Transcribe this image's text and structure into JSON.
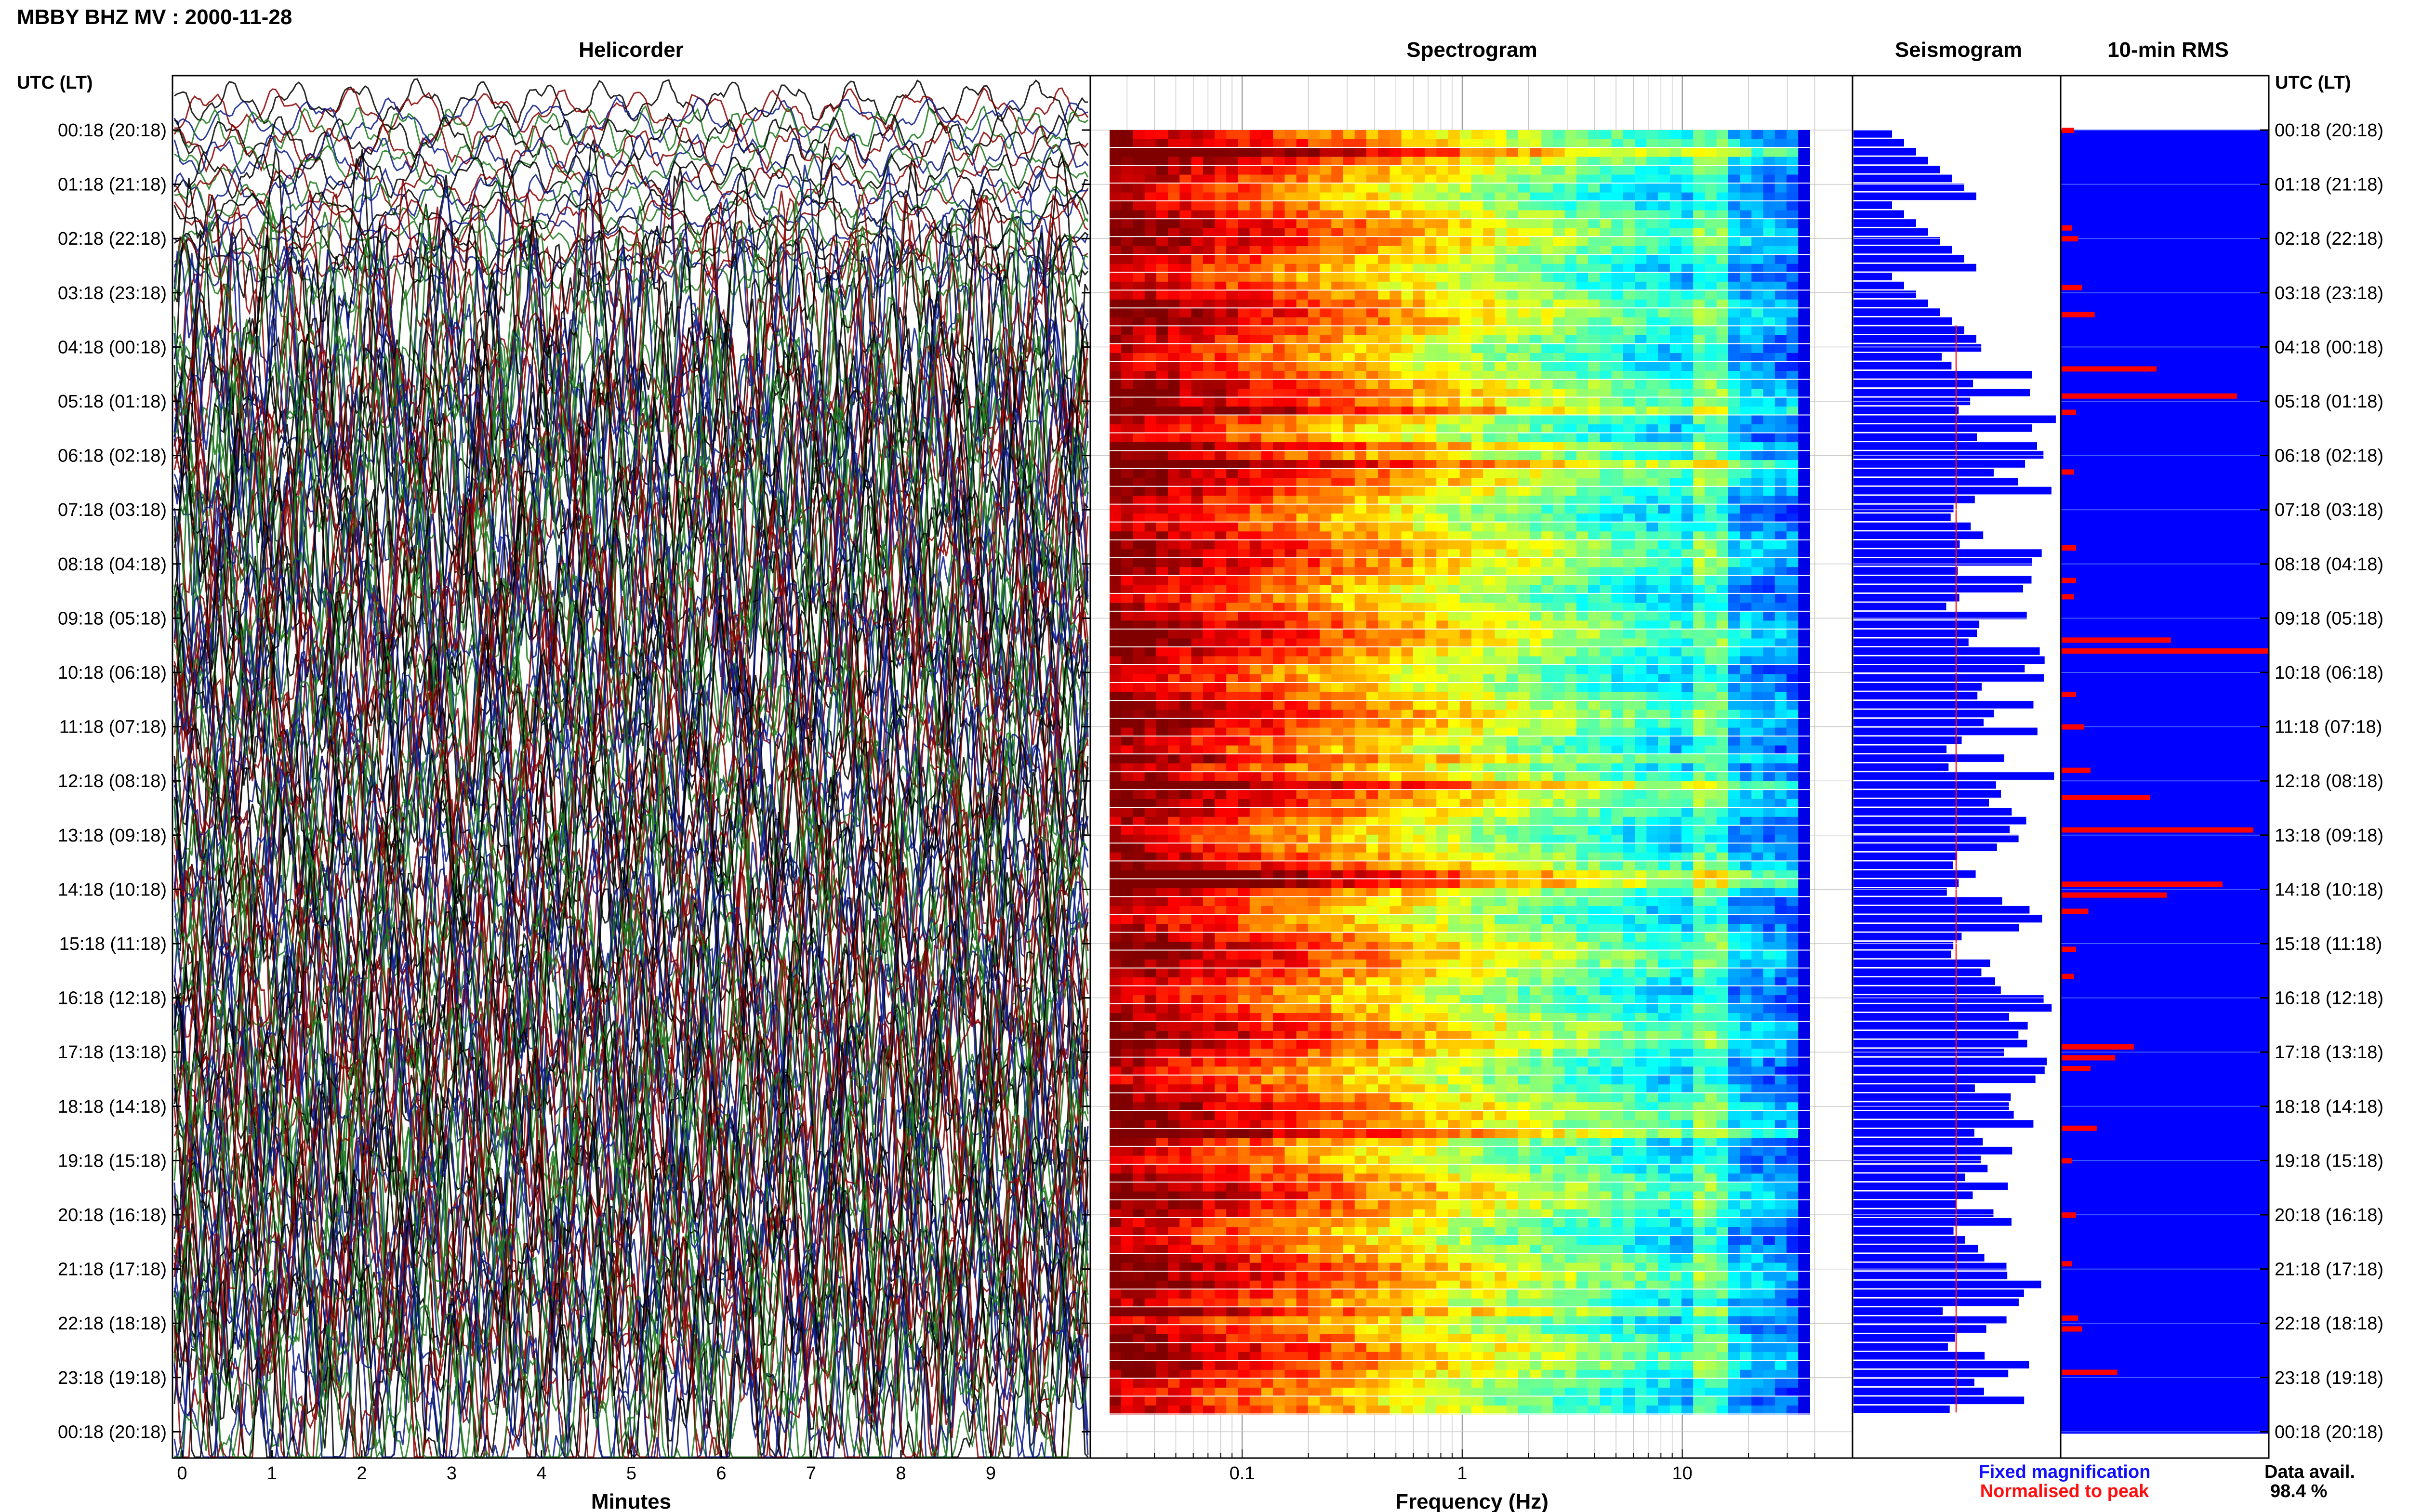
{
  "header": {
    "title": "MBBY BHZ MV : 2000-11-28"
  },
  "panels": {
    "helicorder": "Helicorder",
    "spectrogram": "Spectrogram",
    "seismogram": "Seismogram",
    "rms": "10-min RMS"
  },
  "axes": {
    "left_header": "UTC (LT)",
    "right_header": "UTC (LT)",
    "minutes_label": "Minutes",
    "freq_label": "Frequency (Hz)"
  },
  "legend": {
    "fixed": "Fixed magnification",
    "normalised": "Normalised to peak",
    "fixed_color": "#1010ff",
    "normalised_color": "#ff1010"
  },
  "availability": {
    "label": "Data avail.",
    "value": "98.4 %"
  },
  "colors": {
    "heli_traces": [
      "#000000",
      "#8b0000",
      "#0a1a8c",
      "#1a7a1a"
    ],
    "seismo_fill": "#0000ff",
    "rms_bg": "#0000ff",
    "rms_bar": "#ff0000",
    "grid": "#b0b0b0"
  },
  "chart_data": {
    "type": "heatmap",
    "title": "MBBY BHZ MV : 2000-11-28",
    "row_labels": [
      "00:18 (20:18)",
      "01:18 (21:18)",
      "02:18 (22:18)",
      "03:18 (23:18)",
      "04:18 (00:18)",
      "05:18 (01:18)",
      "06:18 (02:18)",
      "07:18 (03:18)",
      "08:18 (04:18)",
      "09:18 (05:18)",
      "10:18 (06:18)",
      "11:18 (07:18)",
      "12:18 (08:18)",
      "13:18 (09:18)",
      "14:18 (10:18)",
      "15:18 (11:18)",
      "16:18 (12:18)",
      "17:18 (13:18)",
      "18:18 (14:18)",
      "19:18 (15:18)",
      "20:18 (16:18)",
      "21:18 (17:18)",
      "22:18 (18:18)",
      "23:18 (19:18)",
      "00:18 (20:18)"
    ],
    "minutes_ticks": [
      "0",
      "1",
      "2",
      "3",
      "4",
      "5",
      "6",
      "7",
      "8",
      "9"
    ],
    "freq_ticks": [
      {
        "value": 0.1,
        "label": "0.1"
      },
      {
        "value": 1,
        "label": "1"
      },
      {
        "value": 10,
        "label": "10"
      }
    ],
    "freq_range": [
      0.025,
      45
    ],
    "minutes_range": [
      0,
      10
    ],
    "rms_events": [
      {
        "row": 0.0,
        "value": 0.06
      },
      {
        "row": 1.8,
        "value": 0.05
      },
      {
        "row": 2.0,
        "value": 0.08
      },
      {
        "row": 2.9,
        "value": 0.1
      },
      {
        "row": 3.4,
        "value": 0.16
      },
      {
        "row": 4.4,
        "value": 0.46
      },
      {
        "row": 4.9,
        "value": 0.85
      },
      {
        "row": 5.2,
        "value": 0.07
      },
      {
        "row": 6.3,
        "value": 0.06
      },
      {
        "row": 7.7,
        "value": 0.07
      },
      {
        "row": 8.3,
        "value": 0.07
      },
      {
        "row": 8.6,
        "value": 0.06
      },
      {
        "row": 9.4,
        "value": 0.53
      },
      {
        "row": 9.6,
        "value": 1.0
      },
      {
        "row": 10.4,
        "value": 0.07
      },
      {
        "row": 11.0,
        "value": 0.11
      },
      {
        "row": 11.8,
        "value": 0.14
      },
      {
        "row": 12.3,
        "value": 0.43
      },
      {
        "row": 12.9,
        "value": 0.93
      },
      {
        "row": 13.9,
        "value": 0.78
      },
      {
        "row": 14.1,
        "value": 0.51
      },
      {
        "row": 14.4,
        "value": 0.13
      },
      {
        "row": 15.1,
        "value": 0.07
      },
      {
        "row": 15.6,
        "value": 0.06
      },
      {
        "row": 16.9,
        "value": 0.35
      },
      {
        "row": 17.1,
        "value": 0.26
      },
      {
        "row": 17.3,
        "value": 0.14
      },
      {
        "row": 18.4,
        "value": 0.17
      },
      {
        "row": 19.0,
        "value": 0.05
      },
      {
        "row": 20.0,
        "value": 0.07
      },
      {
        "row": 20.9,
        "value": 0.05
      },
      {
        "row": 21.9,
        "value": 0.08
      },
      {
        "row": 22.1,
        "value": 0.1
      },
      {
        "row": 22.9,
        "value": 0.27
      }
    ],
    "y_axis": {
      "label": "UTC (LT)",
      "ticks": 25
    },
    "x_axes": [
      {
        "label": "Minutes",
        "panel": "Helicorder",
        "range": [
          0,
          10
        ]
      },
      {
        "label": "Frequency (Hz)",
        "panel": "Spectrogram",
        "scale": "log"
      }
    ],
    "legend": [
      "Fixed magnification",
      "Normalised to peak"
    ],
    "grid": true
  }
}
